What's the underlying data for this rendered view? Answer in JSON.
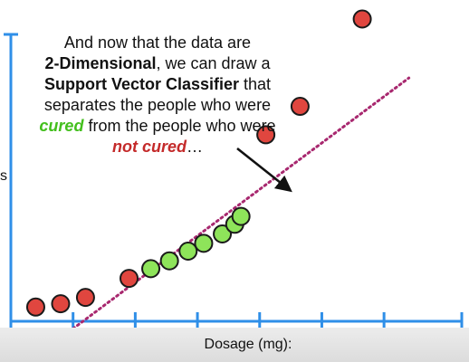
{
  "chart_data": {
    "type": "scatter",
    "xlabel": "Dosage (mg):",
    "ylabel_visible": "s",
    "xlim": [
      0,
      14.5
    ],
    "ylim": [
      0,
      100
    ],
    "x_ticks": [
      2,
      4,
      6,
      8,
      10,
      12
    ],
    "y_ticks": [],
    "grid": false,
    "legend": "none",
    "series": [
      {
        "name": "not cured",
        "color": "#e0463f",
        "points": [
          [
            0.8,
            4.7
          ],
          [
            1.6,
            5.8
          ],
          [
            2.4,
            7.9
          ],
          [
            3.8,
            14.2
          ],
          [
            8.2,
            61.7
          ],
          [
            9.3,
            71.1
          ],
          [
            11.3,
            100
          ]
        ]
      },
      {
        "name": "cured",
        "color": "#8ee45a",
        "points": [
          [
            4.5,
            17.4
          ],
          [
            5.1,
            20
          ],
          [
            5.7,
            23.2
          ],
          [
            6.2,
            25.8
          ],
          [
            6.8,
            28.9
          ],
          [
            7.2,
            32.1
          ],
          [
            7.4,
            34.7
          ]
        ]
      }
    ],
    "support_vector_classifier": {
      "style": "dotted",
      "color": "#a8286f",
      "points": [
        [
          0.6,
          -13.2
        ],
        [
          12.8,
          80.5
        ]
      ]
    },
    "annotation": {
      "line1": "And now that the data are",
      "dim_bold": "2-Dimensional",
      "line2_rest": ", we can draw a",
      "svc_bold": "Support Vector Classifier",
      "line3_rest": " that",
      "line4": "separates the people who were",
      "cured_word": "cured",
      "line5_rest": " from the people who were",
      "not_cured_word": "not cured",
      "ellipsis": "…"
    }
  }
}
